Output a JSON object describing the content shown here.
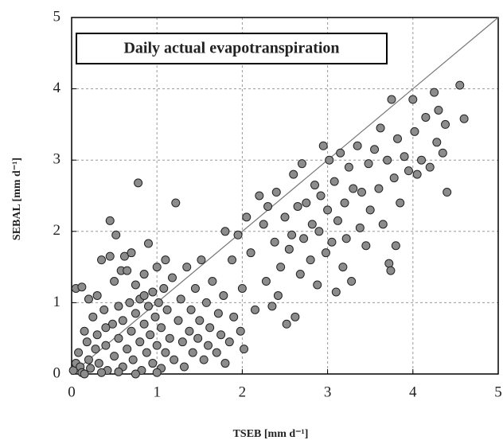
{
  "chart_data": {
    "type": "scatter",
    "title": "Daily actual evapotranspiration",
    "x_label": "TSEB   [mm d⁻¹]",
    "y_label": "SEBAL   [mm d⁻¹]",
    "xlim": [
      0,
      5
    ],
    "ylim": [
      0,
      5
    ],
    "xticks": [
      0,
      1,
      2,
      3,
      4,
      5
    ],
    "yticks": [
      0,
      1,
      2,
      3,
      4,
      5
    ],
    "grid": true,
    "identity_line": true,
    "color": "#8c8c8c",
    "x": [
      0.02,
      0.05,
      0.08,
      0.1,
      0.12,
      0.05,
      0.12,
      0.15,
      0.18,
      0.2,
      0.22,
      0.25,
      0.28,
      0.3,
      0.3,
      0.32,
      0.35,
      0.38,
      0.4,
      0.42,
      0.45,
      0.45,
      0.48,
      0.5,
      0.5,
      0.52,
      0.55,
      0.55,
      0.58,
      0.6,
      0.6,
      0.62,
      0.65,
      0.68,
      0.7,
      0.7,
      0.72,
      0.75,
      0.75,
      0.78,
      0.8,
      0.8,
      0.82,
      0.85,
      0.85,
      0.88,
      0.9,
      0.9,
      0.92,
      0.95,
      0.95,
      0.98,
      1.0,
      1.0,
      1.02,
      1.05,
      1.05,
      1.08,
      1.1,
      1.12,
      1.15,
      1.18,
      1.2,
      1.22,
      1.25,
      1.28,
      1.3,
      1.32,
      1.35,
      1.38,
      1.4,
      1.42,
      1.45,
      1.48,
      1.5,
      1.52,
      1.55,
      1.58,
      1.6,
      1.62,
      1.65,
      1.7,
      1.72,
      1.75,
      1.78,
      1.8,
      1.8,
      1.85,
      1.88,
      1.9,
      1.95,
      1.98,
      2.0,
      2.02,
      0.15,
      0.35,
      0.55,
      0.75,
      1.0,
      0.2,
      0.65,
      1.1,
      0.4,
      0.85,
      2.05,
      2.1,
      2.15,
      2.2,
      2.25,
      2.28,
      2.3,
      2.35,
      2.38,
      2.4,
      2.45,
      2.5,
      2.52,
      2.55,
      2.6,
      2.62,
      2.65,
      2.68,
      2.7,
      2.72,
      2.75,
      2.8,
      2.82,
      2.85,
      2.88,
      2.9,
      2.92,
      2.95,
      2.98,
      3.0,
      3.02,
      3.05,
      3.08,
      3.1,
      3.12,
      3.15,
      3.18,
      3.2,
      3.22,
      3.25,
      3.28,
      3.3,
      3.35,
      3.38,
      3.4,
      3.45,
      3.48,
      3.5,
      3.55,
      3.6,
      3.62,
      3.65,
      3.7,
      3.72,
      3.75,
      3.78,
      3.8,
      3.82,
      3.85,
      3.9,
      3.95,
      4.0,
      4.02,
      4.05,
      4.1,
      4.15,
      4.2,
      4.25,
      4.28,
      4.3,
      4.35,
      4.38,
      4.4,
      4.55,
      4.6,
      3.74,
      2.42,
      2.58
    ],
    "y": [
      0.05,
      0.15,
      0.3,
      0.1,
      0.02,
      1.2,
      1.22,
      0.6,
      0.45,
      0.2,
      0.08,
      0.8,
      0.35,
      1.1,
      0.55,
      0.15,
      1.6,
      0.9,
      0.4,
      0.05,
      1.65,
      2.15,
      0.7,
      1.3,
      0.25,
      1.95,
      0.95,
      0.5,
      1.45,
      0.1,
      0.75,
      1.65,
      0.35,
      1.0,
      0.6,
      1.7,
      0.2,
      1.25,
      0.85,
      2.68,
      0.45,
      1.05,
      0.05,
      0.7,
      1.4,
      0.3,
      0.95,
      1.83,
      0.55,
      1.15,
      0.15,
      0.8,
      1.5,
      0.4,
      1.0,
      0.65,
      0.08,
      1.2,
      0.3,
      0.9,
      0.5,
      1.35,
      0.2,
      2.4,
      0.75,
      1.05,
      0.45,
      0.1,
      1.5,
      0.6,
      0.9,
      0.3,
      1.2,
      0.5,
      0.75,
      1.6,
      0.2,
      1.0,
      0.4,
      0.65,
      1.3,
      0.3,
      0.85,
      0.55,
      1.1,
      0.15,
      2.0,
      0.45,
      1.6,
      0.8,
      1.95,
      0.6,
      1.2,
      0.35,
      0.0,
      0.02,
      0.03,
      0.0,
      0.02,
      1.05,
      1.45,
      1.6,
      0.65,
      1.1,
      2.2,
      1.7,
      0.9,
      2.5,
      2.1,
      1.3,
      2.35,
      0.95,
      1.85,
      2.55,
      1.5,
      2.2,
      0.7,
      1.75,
      2.8,
      0.8,
      2.35,
      1.4,
      2.95,
      1.9,
      2.4,
      1.6,
      2.1,
      2.65,
      1.25,
      2.0,
      2.5,
      3.2,
      1.7,
      2.3,
      3.0,
      1.85,
      2.7,
      1.15,
      2.15,
      3.1,
      1.5,
      2.4,
      1.9,
      2.9,
      1.3,
      2.6,
      3.2,
      2.05,
      2.55,
      1.8,
      2.95,
      2.3,
      3.15,
      2.6,
      3.45,
      2.1,
      3.0,
      1.55,
      3.85,
      2.75,
      1.8,
      3.3,
      2.4,
      3.05,
      2.85,
      3.85,
      3.4,
      2.8,
      3.0,
      3.6,
      2.9,
      3.95,
      3.25,
      3.7,
      3.1,
      3.5,
      2.55,
      4.05,
      3.58,
      1.45,
      1.1,
      1.95
    ]
  }
}
